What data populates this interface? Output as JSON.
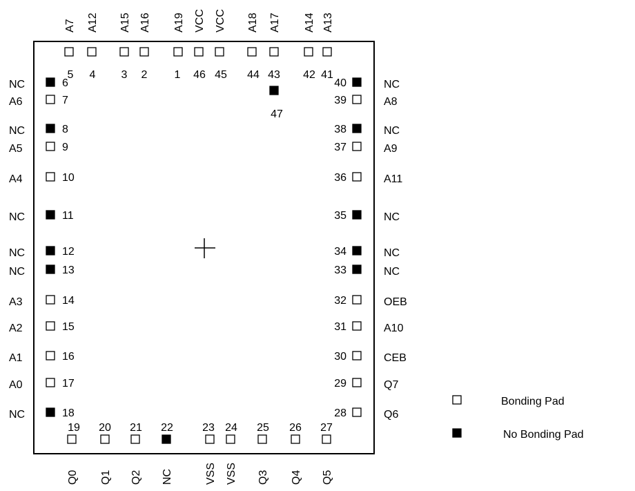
{
  "colors": {
    "line": "#000000",
    "filled_pad": "#000000",
    "open_pad": "#ffffff"
  },
  "pads": [
    {
      "num": "1",
      "signal": "A19",
      "side": "top",
      "bonded": true
    },
    {
      "num": "2",
      "signal": "A16",
      "side": "top",
      "bonded": true
    },
    {
      "num": "3",
      "signal": "A15",
      "side": "top",
      "bonded": true
    },
    {
      "num": "4",
      "signal": "A12",
      "side": "top",
      "bonded": true
    },
    {
      "num": "5",
      "signal": "A7",
      "side": "top",
      "bonded": true
    },
    {
      "num": "6",
      "signal": "NC",
      "side": "left",
      "bonded": false
    },
    {
      "num": "7",
      "signal": "A6",
      "side": "left",
      "bonded": true
    },
    {
      "num": "8",
      "signal": "NC",
      "side": "left",
      "bonded": false
    },
    {
      "num": "9",
      "signal": "A5",
      "side": "left",
      "bonded": true
    },
    {
      "num": "10",
      "signal": "A4",
      "side": "left",
      "bonded": true
    },
    {
      "num": "11",
      "signal": "NC",
      "side": "left",
      "bonded": false
    },
    {
      "num": "12",
      "signal": "NC",
      "side": "left",
      "bonded": false
    },
    {
      "num": "13",
      "signal": "NC",
      "side": "left",
      "bonded": false
    },
    {
      "num": "14",
      "signal": "A3",
      "side": "left",
      "bonded": true
    },
    {
      "num": "15",
      "signal": "A2",
      "side": "left",
      "bonded": true
    },
    {
      "num": "16",
      "signal": "A1",
      "side": "left",
      "bonded": true
    },
    {
      "num": "17",
      "signal": "A0",
      "side": "left",
      "bonded": true
    },
    {
      "num": "18",
      "signal": "NC",
      "side": "left",
      "bonded": false
    },
    {
      "num": "19",
      "signal": "Q0",
      "side": "bottom",
      "bonded": true
    },
    {
      "num": "20",
      "signal": "Q1",
      "side": "bottom",
      "bonded": true
    },
    {
      "num": "21",
      "signal": "Q2",
      "side": "bottom",
      "bonded": true
    },
    {
      "num": "22",
      "signal": "NC",
      "side": "bottom",
      "bonded": false
    },
    {
      "num": "23",
      "signal": "VSS",
      "side": "bottom",
      "bonded": true
    },
    {
      "num": "24",
      "signal": "VSS",
      "side": "bottom",
      "bonded": true
    },
    {
      "num": "25",
      "signal": "Q3",
      "side": "bottom",
      "bonded": true
    },
    {
      "num": "26",
      "signal": "Q4",
      "side": "bottom",
      "bonded": true
    },
    {
      "num": "27",
      "signal": "Q5",
      "side": "bottom",
      "bonded": true
    },
    {
      "num": "28",
      "signal": "Q6",
      "side": "right",
      "bonded": true
    },
    {
      "num": "29",
      "signal": "Q7",
      "side": "right",
      "bonded": true
    },
    {
      "num": "30",
      "signal": "CEB",
      "side": "right",
      "bonded": true
    },
    {
      "num": "31",
      "signal": "A10",
      "side": "right",
      "bonded": true
    },
    {
      "num": "32",
      "signal": "OEB",
      "side": "right",
      "bonded": true
    },
    {
      "num": "33",
      "signal": "NC",
      "side": "right",
      "bonded": false
    },
    {
      "num": "34",
      "signal": "NC",
      "side": "right",
      "bonded": false
    },
    {
      "num": "35",
      "signal": "NC",
      "side": "right",
      "bonded": false
    },
    {
      "num": "36",
      "signal": "A11",
      "side": "right",
      "bonded": true
    },
    {
      "num": "37",
      "signal": "A9",
      "side": "right",
      "bonded": true
    },
    {
      "num": "38",
      "signal": "NC",
      "side": "right",
      "bonded": false
    },
    {
      "num": "39",
      "signal": "A8",
      "side": "right",
      "bonded": true
    },
    {
      "num": "40",
      "signal": "NC",
      "side": "right",
      "bonded": false
    },
    {
      "num": "41",
      "signal": "A13",
      "side": "top",
      "bonded": true
    },
    {
      "num": "42",
      "signal": "A14",
      "side": "top",
      "bonded": true
    },
    {
      "num": "43",
      "signal": "A17",
      "side": "top",
      "bonded": true
    },
    {
      "num": "44",
      "signal": "A18",
      "side": "top",
      "bonded": true
    },
    {
      "num": "45",
      "signal": "VCC",
      "side": "top",
      "bonded": true
    },
    {
      "num": "46",
      "signal": "VCC",
      "side": "top",
      "bonded": true
    },
    {
      "num": "47",
      "signal": "",
      "side": "inner",
      "bonded": false
    }
  ],
  "legend": {
    "bonding_label": "Bonding Pad",
    "no_bonding_label": "No Bonding Pad"
  }
}
